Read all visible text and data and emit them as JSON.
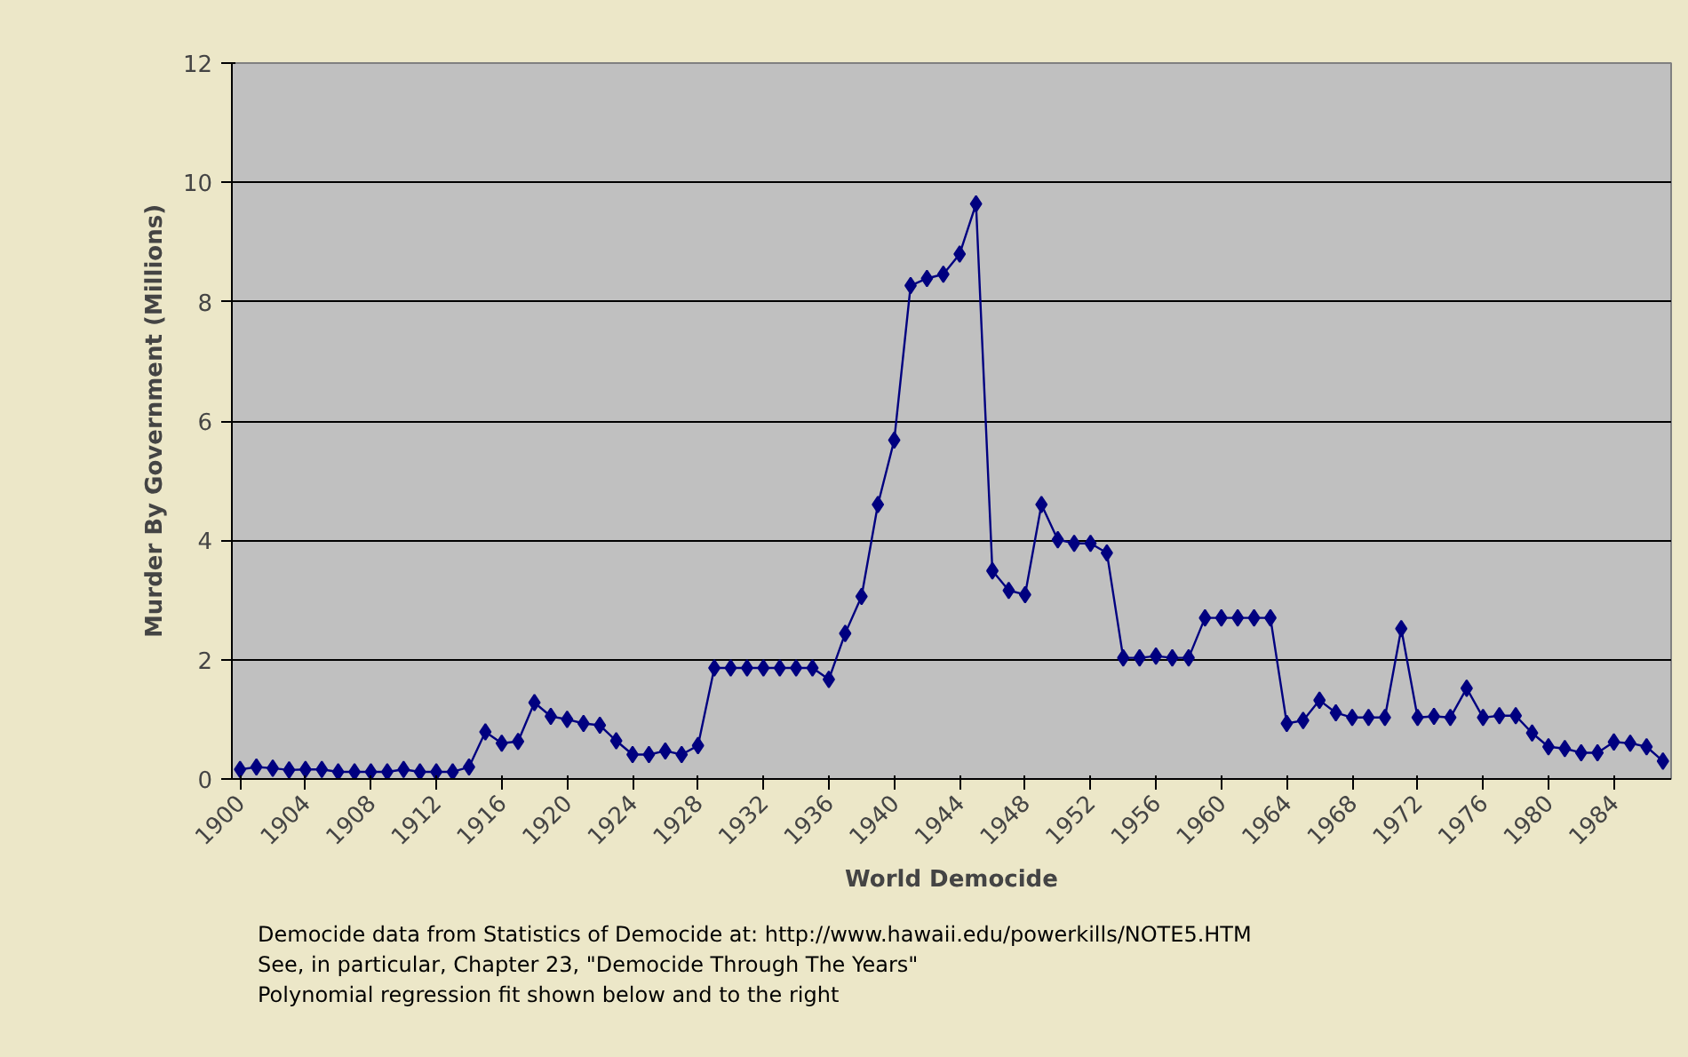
{
  "chart_data": {
    "type": "line",
    "xlabel": "World Democide",
    "ylabel": "Murder By Government (Millions)",
    "categories": [
      "1900",
      null,
      null,
      null,
      "1904",
      null,
      null,
      null,
      "1908",
      null,
      null,
      null,
      "1912",
      null,
      null,
      null,
      "1916",
      null,
      null,
      null,
      "1920",
      null,
      null,
      null,
      "1924",
      null,
      null,
      null,
      "1928",
      null,
      null,
      null,
      "1932",
      null,
      null,
      null,
      "1936",
      null,
      null,
      null,
      "1940",
      null,
      null,
      null,
      "1944",
      null,
      null,
      null,
      "1948",
      null,
      null,
      null,
      "1952",
      null,
      null,
      null,
      "1956",
      null,
      null,
      null,
      "1960",
      null,
      null,
      null,
      "1964",
      null,
      null,
      null,
      "1968",
      null,
      null,
      null,
      "1972",
      null,
      null,
      null,
      "1976",
      null,
      null,
      null,
      "1980",
      null,
      null,
      null,
      "1984",
      null,
      null,
      null
    ],
    "series": [
      {
        "color": "#000080",
        "values": [
          0.16,
          0.2,
          0.18,
          0.15,
          0.16,
          0.16,
          0.12,
          0.12,
          0.12,
          0.12,
          0.16,
          0.12,
          0.12,
          0.12,
          0.2,
          0.79,
          0.6,
          0.63,
          1.28,
          1.05,
          1.0,
          0.93,
          0.9,
          0.64,
          0.41,
          0.41,
          0.47,
          0.41,
          0.56,
          1.86,
          1.86,
          1.86,
          1.86,
          1.86,
          1.86,
          1.86,
          1.67,
          2.44,
          3.06,
          4.6,
          5.68,
          8.27,
          8.39,
          8.46,
          8.8,
          9.64,
          3.49,
          3.16,
          3.09,
          4.6,
          4.01,
          3.95,
          3.95,
          3.79,
          2.03,
          2.03,
          2.06,
          2.03,
          2.03,
          2.7,
          2.7,
          2.7,
          2.7,
          2.7,
          0.93,
          0.98,
          1.32,
          1.11,
          1.03,
          1.03,
          1.03,
          2.52,
          1.03,
          1.05,
          1.03,
          1.52,
          1.03,
          1.06,
          1.06,
          0.77,
          0.54,
          0.51,
          0.44,
          0.44,
          0.62,
          0.6,
          0.54,
          0.3
        ]
      }
    ],
    "ylim": [
      0,
      12
    ],
    "yticks": [
      0,
      2,
      4,
      6,
      8,
      10,
      12
    ],
    "grid": "y",
    "marker": "diamond",
    "line_style": "solid",
    "annotations": [
      "Democide data from Statistics of Democide at: http://www.hawaii.edu/powerkills/NOTE5.HTM",
      "See, in particular, Chapter 23, \"Democide Through The Years\"",
      "Polynomial regression fit shown below and to the right"
    ]
  }
}
